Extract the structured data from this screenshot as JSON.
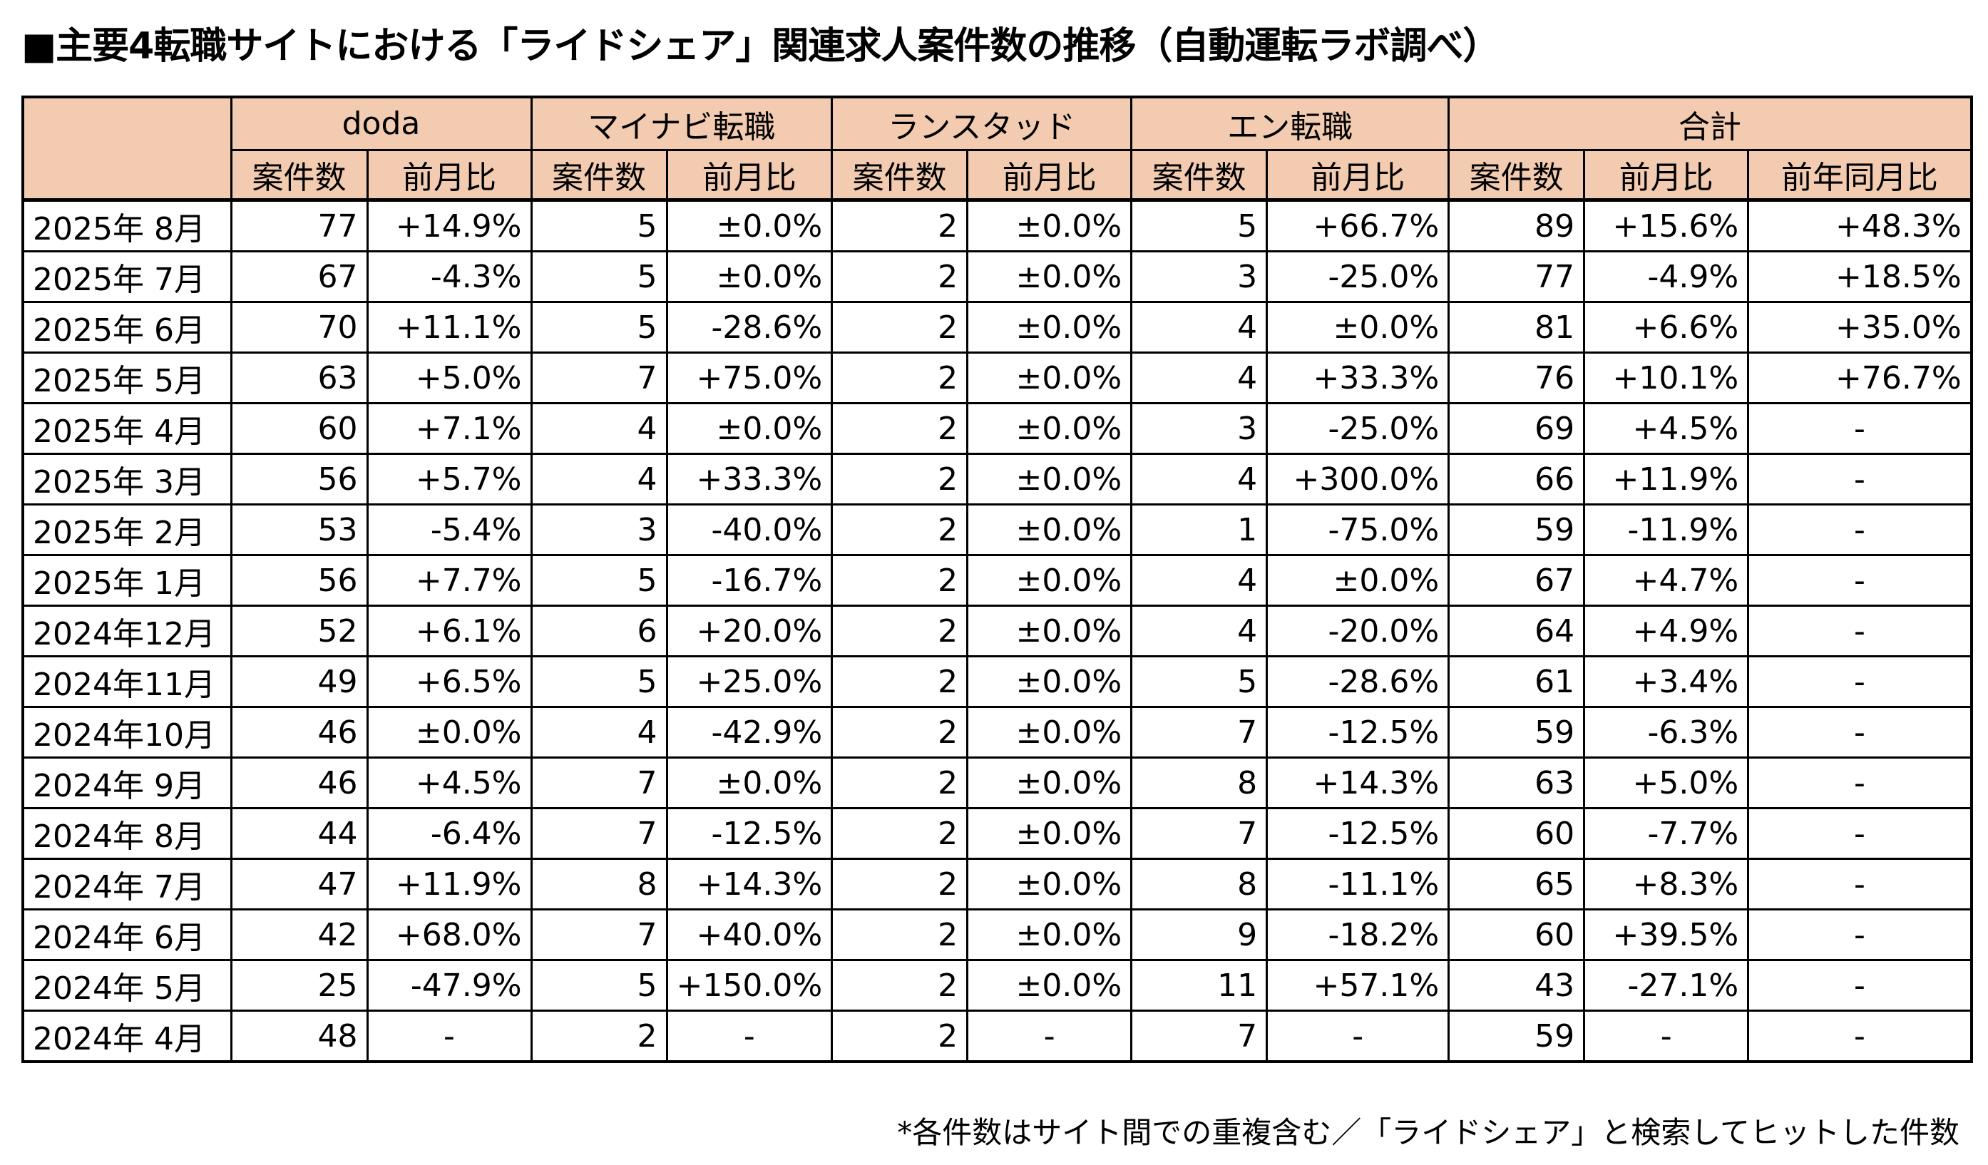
{
  "title": "■主要4転職サイトにおける「ライドシェア」関連求人案件数の推移（自動運転ラボ調べ）",
  "sites": [
    "doda",
    "マイナビ転職",
    "ランスタッド",
    "エン転職",
    "合計"
  ],
  "subheaders": {
    "count": "案件数",
    "mom": "前月比",
    "yoy": "前年同月比"
  },
  "rows": [
    {
      "month": "2025年 8月",
      "doda": [
        "77",
        "+14.9%"
      ],
      "mynavi": [
        "5",
        "±0.0%"
      ],
      "randstad": [
        "2",
        "±0.0%"
      ],
      "en": [
        "5",
        "+66.7%"
      ],
      "total": [
        "89",
        "+15.6%",
        "+48.3%"
      ]
    },
    {
      "month": "2025年 7月",
      "doda": [
        "67",
        "-4.3%"
      ],
      "mynavi": [
        "5",
        "±0.0%"
      ],
      "randstad": [
        "2",
        "±0.0%"
      ],
      "en": [
        "3",
        "-25.0%"
      ],
      "total": [
        "77",
        "-4.9%",
        "+18.5%"
      ]
    },
    {
      "month": "2025年 6月",
      "doda": [
        "70",
        "+11.1%"
      ],
      "mynavi": [
        "5",
        "-28.6%"
      ],
      "randstad": [
        "2",
        "±0.0%"
      ],
      "en": [
        "4",
        "±0.0%"
      ],
      "total": [
        "81",
        "+6.6%",
        "+35.0%"
      ]
    },
    {
      "month": "2025年 5月",
      "doda": [
        "63",
        "+5.0%"
      ],
      "mynavi": [
        "7",
        "+75.0%"
      ],
      "randstad": [
        "2",
        "±0.0%"
      ],
      "en": [
        "4",
        "+33.3%"
      ],
      "total": [
        "76",
        "+10.1%",
        "+76.7%"
      ]
    },
    {
      "month": "2025年 4月",
      "doda": [
        "60",
        "+7.1%"
      ],
      "mynavi": [
        "4",
        "±0.0%"
      ],
      "randstad": [
        "2",
        "±0.0%"
      ],
      "en": [
        "3",
        "-25.0%"
      ],
      "total": [
        "69",
        "+4.5%",
        "-"
      ]
    },
    {
      "month": "2025年 3月",
      "doda": [
        "56",
        "+5.7%"
      ],
      "mynavi": [
        "4",
        "+33.3%"
      ],
      "randstad": [
        "2",
        "±0.0%"
      ],
      "en": [
        "4",
        "+300.0%"
      ],
      "total": [
        "66",
        "+11.9%",
        "-"
      ]
    },
    {
      "month": "2025年 2月",
      "doda": [
        "53",
        "-5.4%"
      ],
      "mynavi": [
        "3",
        "-40.0%"
      ],
      "randstad": [
        "2",
        "±0.0%"
      ],
      "en": [
        "1",
        "-75.0%"
      ],
      "total": [
        "59",
        "-11.9%",
        "-"
      ]
    },
    {
      "month": "2025年 1月",
      "doda": [
        "56",
        "+7.7%"
      ],
      "mynavi": [
        "5",
        "-16.7%"
      ],
      "randstad": [
        "2",
        "±0.0%"
      ],
      "en": [
        "4",
        "±0.0%"
      ],
      "total": [
        "67",
        "+4.7%",
        "-"
      ]
    },
    {
      "month": "2024年12月",
      "doda": [
        "52",
        "+6.1%"
      ],
      "mynavi": [
        "6",
        "+20.0%"
      ],
      "randstad": [
        "2",
        "±0.0%"
      ],
      "en": [
        "4",
        "-20.0%"
      ],
      "total": [
        "64",
        "+4.9%",
        "-"
      ]
    },
    {
      "month": "2024年11月",
      "doda": [
        "49",
        "+6.5%"
      ],
      "mynavi": [
        "5",
        "+25.0%"
      ],
      "randstad": [
        "2",
        "±0.0%"
      ],
      "en": [
        "5",
        "-28.6%"
      ],
      "total": [
        "61",
        "+3.4%",
        "-"
      ]
    },
    {
      "month": "2024年10月",
      "doda": [
        "46",
        "±0.0%"
      ],
      "mynavi": [
        "4",
        "-42.9%"
      ],
      "randstad": [
        "2",
        "±0.0%"
      ],
      "en": [
        "7",
        "-12.5%"
      ],
      "total": [
        "59",
        "-6.3%",
        "-"
      ]
    },
    {
      "month": "2024年 9月",
      "doda": [
        "46",
        "+4.5%"
      ],
      "mynavi": [
        "7",
        "±0.0%"
      ],
      "randstad": [
        "2",
        "±0.0%"
      ],
      "en": [
        "8",
        "+14.3%"
      ],
      "total": [
        "63",
        "+5.0%",
        "-"
      ]
    },
    {
      "month": "2024年 8月",
      "doda": [
        "44",
        "-6.4%"
      ],
      "mynavi": [
        "7",
        "-12.5%"
      ],
      "randstad": [
        "2",
        "±0.0%"
      ],
      "en": [
        "7",
        "-12.5%"
      ],
      "total": [
        "60",
        "-7.7%",
        "-"
      ]
    },
    {
      "month": "2024年 7月",
      "doda": [
        "47",
        "+11.9%"
      ],
      "mynavi": [
        "8",
        "+14.3%"
      ],
      "randstad": [
        "2",
        "±0.0%"
      ],
      "en": [
        "8",
        "-11.1%"
      ],
      "total": [
        "65",
        "+8.3%",
        "-"
      ]
    },
    {
      "month": "2024年 6月",
      "doda": [
        "42",
        "+68.0%"
      ],
      "mynavi": [
        "7",
        "+40.0%"
      ],
      "randstad": [
        "2",
        "±0.0%"
      ],
      "en": [
        "9",
        "-18.2%"
      ],
      "total": [
        "60",
        "+39.5%",
        "-"
      ]
    },
    {
      "month": "2024年 5月",
      "doda": [
        "25",
        "-47.9%"
      ],
      "mynavi": [
        "5",
        "+150.0%"
      ],
      "randstad": [
        "2",
        "±0.0%"
      ],
      "en": [
        "11",
        "+57.1%"
      ],
      "total": [
        "43",
        "-27.1%",
        "-"
      ]
    },
    {
      "month": "2024年 4月",
      "doda": [
        "48",
        "-"
      ],
      "mynavi": [
        "2",
        "-"
      ],
      "randstad": [
        "2",
        "-"
      ],
      "en": [
        "7",
        "-"
      ],
      "total": [
        "59",
        "-",
        "-"
      ]
    }
  ],
  "footnote": "*各件数はサイト間での重複含む／「ライドシェア」と検索してヒットした件数",
  "colors": {
    "header_bg": "#F2CBB0"
  }
}
